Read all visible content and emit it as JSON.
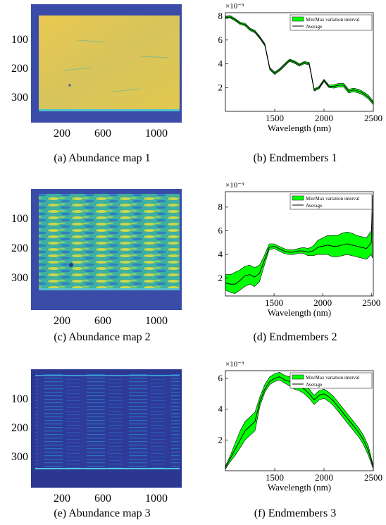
{
  "panels": [
    {
      "kind": "map",
      "caption": "(a)  Abundance map 1",
      "variant": 1,
      "yticks": [
        "100",
        "200",
        "300"
      ],
      "xticks": [
        "200",
        "600",
        "1000"
      ]
    },
    {
      "kind": "spectrum",
      "caption": "(b)  Endmembers 1"
    },
    {
      "kind": "map",
      "caption": "(c)  Abundance map 2",
      "variant": 2,
      "yticks": [
        "100",
        "200",
        "300"
      ],
      "xticks": [
        "200",
        "600",
        "1000"
      ]
    },
    {
      "kind": "spectrum",
      "caption": "(d)  Endmembers 2"
    },
    {
      "kind": "map",
      "caption": "(e)  Abundance map 3",
      "variant": 3,
      "yticks": [
        "100",
        "200",
        "300"
      ],
      "xticks": [
        "200",
        "600",
        "1000"
      ]
    },
    {
      "kind": "spectrum",
      "caption": "(f)  Endmembers 3"
    }
  ],
  "colors": {
    "envelope": "#00ff00",
    "average": "#000000",
    "map_bg": "#3b4ba8",
    "map_yellow": "#e6c64a",
    "map_teal": "#3fb0a0"
  },
  "chart_data": [
    {
      "type": "area",
      "title": "",
      "xlabel": "Wavelength (nm)",
      "ylabel": "",
      "exponent": "×10⁻³",
      "xlim": [
        1000,
        2500
      ],
      "ylim": [
        0,
        8.3
      ],
      "xticks": [
        1500,
        2000,
        2500
      ],
      "yticks": [
        2,
        4,
        6,
        8
      ],
      "legend": [
        "Min/Max variation interval",
        "Average"
      ],
      "legend_position": "top-right",
      "x": [
        1000,
        1050,
        1100,
        1150,
        1200,
        1250,
        1300,
        1350,
        1400,
        1450,
        1500,
        1550,
        1600,
        1650,
        1700,
        1750,
        1800,
        1850,
        1900,
        1950,
        2000,
        2050,
        2100,
        2150,
        2200,
        2250,
        2300,
        2350,
        2400,
        2450,
        2500
      ],
      "series": [
        {
          "name": "Average",
          "values": [
            7.9,
            7.95,
            7.7,
            7.4,
            7.3,
            6.9,
            6.7,
            6.2,
            5.6,
            3.6,
            3.2,
            3.5,
            3.9,
            4.3,
            4.15,
            3.9,
            4.1,
            4.0,
            1.8,
            2.0,
            2.6,
            2.1,
            2.1,
            2.2,
            2.2,
            1.7,
            1.8,
            1.7,
            1.5,
            1.2,
            0.7
          ]
        },
        {
          "name": "Min/Max variation interval",
          "lower": [
            7.8,
            7.85,
            7.6,
            7.3,
            7.2,
            6.8,
            6.6,
            6.1,
            5.5,
            3.5,
            3.1,
            3.4,
            3.8,
            4.2,
            4.05,
            3.8,
            4.0,
            3.9,
            1.7,
            1.9,
            2.5,
            2.0,
            1.95,
            2.05,
            2.05,
            1.55,
            1.65,
            1.55,
            1.35,
            1.05,
            0.55
          ],
          "upper": [
            8.0,
            8.05,
            7.8,
            7.5,
            7.4,
            7.0,
            6.8,
            6.3,
            5.7,
            3.7,
            3.3,
            3.6,
            4.0,
            4.4,
            4.25,
            4.0,
            4.2,
            4.1,
            1.9,
            2.1,
            2.7,
            2.2,
            2.25,
            2.35,
            2.35,
            1.85,
            1.95,
            1.85,
            1.65,
            1.35,
            0.85
          ]
        }
      ]
    },
    {
      "type": "area",
      "title": "",
      "xlabel": "Wavelength (nm)",
      "ylabel": "",
      "exponent": "×10⁻³",
      "xlim": [
        1000,
        2520
      ],
      "ylim": [
        0.5,
        9.3
      ],
      "xticks": [
        1500,
        2000,
        2500
      ],
      "yticks": [
        2,
        4,
        6,
        8
      ],
      "legend": [
        "Min/Max variation interval",
        "Average"
      ],
      "legend_position": "top-right",
      "x": [
        1000,
        1050,
        1100,
        1150,
        1200,
        1250,
        1300,
        1350,
        1400,
        1450,
        1500,
        1550,
        1600,
        1650,
        1700,
        1750,
        1800,
        1850,
        1900,
        1950,
        2000,
        2050,
        2100,
        2150,
        2200,
        2250,
        2300,
        2350,
        2400,
        2450,
        2500,
        2510
      ],
      "series": [
        {
          "name": "Average",
          "values": [
            1.6,
            1.5,
            1.5,
            1.8,
            2.2,
            2.3,
            2.1,
            2.4,
            3.5,
            4.6,
            4.7,
            4.5,
            4.3,
            4.2,
            4.2,
            4.3,
            4.3,
            4.2,
            4.3,
            4.6,
            4.7,
            4.8,
            4.7,
            4.7,
            4.8,
            4.9,
            4.8,
            4.7,
            4.6,
            4.5,
            5.0,
            7.5
          ]
        },
        {
          "name": "Min/Max variation interval",
          "lower": [
            1.0,
            0.8,
            0.7,
            1.0,
            1.3,
            1.5,
            1.3,
            1.7,
            3.1,
            4.4,
            4.5,
            4.3,
            4.1,
            4.0,
            4.0,
            4.1,
            4.1,
            3.9,
            3.9,
            4.0,
            4.0,
            4.0,
            3.8,
            3.8,
            3.9,
            4.0,
            3.9,
            3.8,
            3.7,
            3.6,
            4.0,
            3.7
          ],
          "upper": [
            2.3,
            2.3,
            2.5,
            2.7,
            3.0,
            3.1,
            2.9,
            3.1,
            3.9,
            4.9,
            4.9,
            4.7,
            4.5,
            4.4,
            4.4,
            4.5,
            4.6,
            4.5,
            4.7,
            5.2,
            5.4,
            5.6,
            5.6,
            5.6,
            5.8,
            5.9,
            5.8,
            5.6,
            5.5,
            5.4,
            6.0,
            9.0
          ]
        }
      ]
    },
    {
      "type": "area",
      "title": "",
      "xlabel": "Wavelength (nm)",
      "ylabel": "",
      "exponent": "×10⁻³",
      "xlim": [
        1000,
        2500
      ],
      "ylim": [
        0,
        6.5
      ],
      "xticks": [
        1500,
        2000,
        2500
      ],
      "yticks": [
        2,
        4,
        6
      ],
      "legend": [
        "Min/Max variation interval",
        "Average"
      ],
      "legend_position": "top-right",
      "x": [
        1000,
        1050,
        1100,
        1150,
        1200,
        1250,
        1300,
        1350,
        1400,
        1450,
        1500,
        1550,
        1600,
        1650,
        1700,
        1750,
        1800,
        1850,
        1900,
        1950,
        2000,
        2050,
        2100,
        2150,
        2200,
        2250,
        2300,
        2350,
        2400,
        2450,
        2500
      ],
      "series": [
        {
          "name": "Average",
          "values": [
            0.2,
            0.8,
            1.4,
            2.0,
            2.6,
            2.9,
            3.2,
            4.5,
            5.3,
            5.8,
            6.0,
            6.1,
            5.9,
            5.8,
            5.6,
            5.5,
            5.3,
            5.0,
            4.6,
            4.9,
            5.0,
            4.8,
            4.5,
            4.1,
            3.7,
            3.3,
            2.9,
            2.5,
            2.0,
            1.3,
            0.2
          ]
        },
        {
          "name": "Min/Max variation interval",
          "lower": [
            0.1,
            0.6,
            1.0,
            1.5,
            2.0,
            2.3,
            2.6,
            4.2,
            5.1,
            5.6,
            5.8,
            5.9,
            5.7,
            5.5,
            5.3,
            5.2,
            5.0,
            4.7,
            4.3,
            4.6,
            4.7,
            4.5,
            4.2,
            3.8,
            3.4,
            3.0,
            2.6,
            2.2,
            1.7,
            1.0,
            0.1
          ],
          "upper": [
            0.3,
            1.0,
            1.8,
            2.6,
            3.2,
            3.5,
            3.8,
            4.8,
            5.6,
            6.1,
            6.3,
            6.4,
            6.2,
            6.1,
            5.9,
            5.8,
            5.6,
            5.3,
            4.9,
            5.2,
            5.3,
            5.1,
            4.8,
            4.4,
            4.0,
            3.6,
            3.2,
            2.8,
            2.3,
            1.6,
            0.3
          ]
        }
      ]
    }
  ]
}
